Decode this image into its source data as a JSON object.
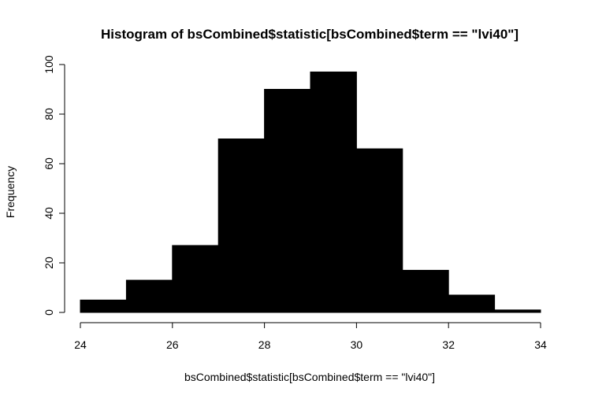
{
  "chart_data": {
    "type": "bar",
    "title": "Histogram of bsCombined$statistic[bsCombined$term == \"lvi40\"]",
    "xlabel": "bsCombined$statistic[bsCombined$term == \"lvi40\"]",
    "ylabel": "Frequency",
    "bins": [
      {
        "x0": 24,
        "x1": 25,
        "count": 5
      },
      {
        "x0": 25,
        "x1": 26,
        "count": 13
      },
      {
        "x0": 26,
        "x1": 27,
        "count": 27
      },
      {
        "x0": 27,
        "x1": 28,
        "count": 70
      },
      {
        "x0": 28,
        "x1": 29,
        "count": 90
      },
      {
        "x0": 29,
        "x1": 30,
        "count": 97
      },
      {
        "x0": 30,
        "x1": 31,
        "count": 66
      },
      {
        "x0": 31,
        "x1": 32,
        "count": 17
      },
      {
        "x0": 32,
        "x1": 33,
        "count": 7
      },
      {
        "x0": 33,
        "x1": 34,
        "count": 1
      }
    ],
    "xlim": [
      24,
      34
    ],
    "ylim": [
      0,
      100
    ],
    "xticks": [
      24,
      26,
      28,
      30,
      32,
      34
    ],
    "yticks": [
      0,
      20,
      40,
      60,
      80,
      100
    ],
    "bar_color": "#000000",
    "grid": false
  }
}
